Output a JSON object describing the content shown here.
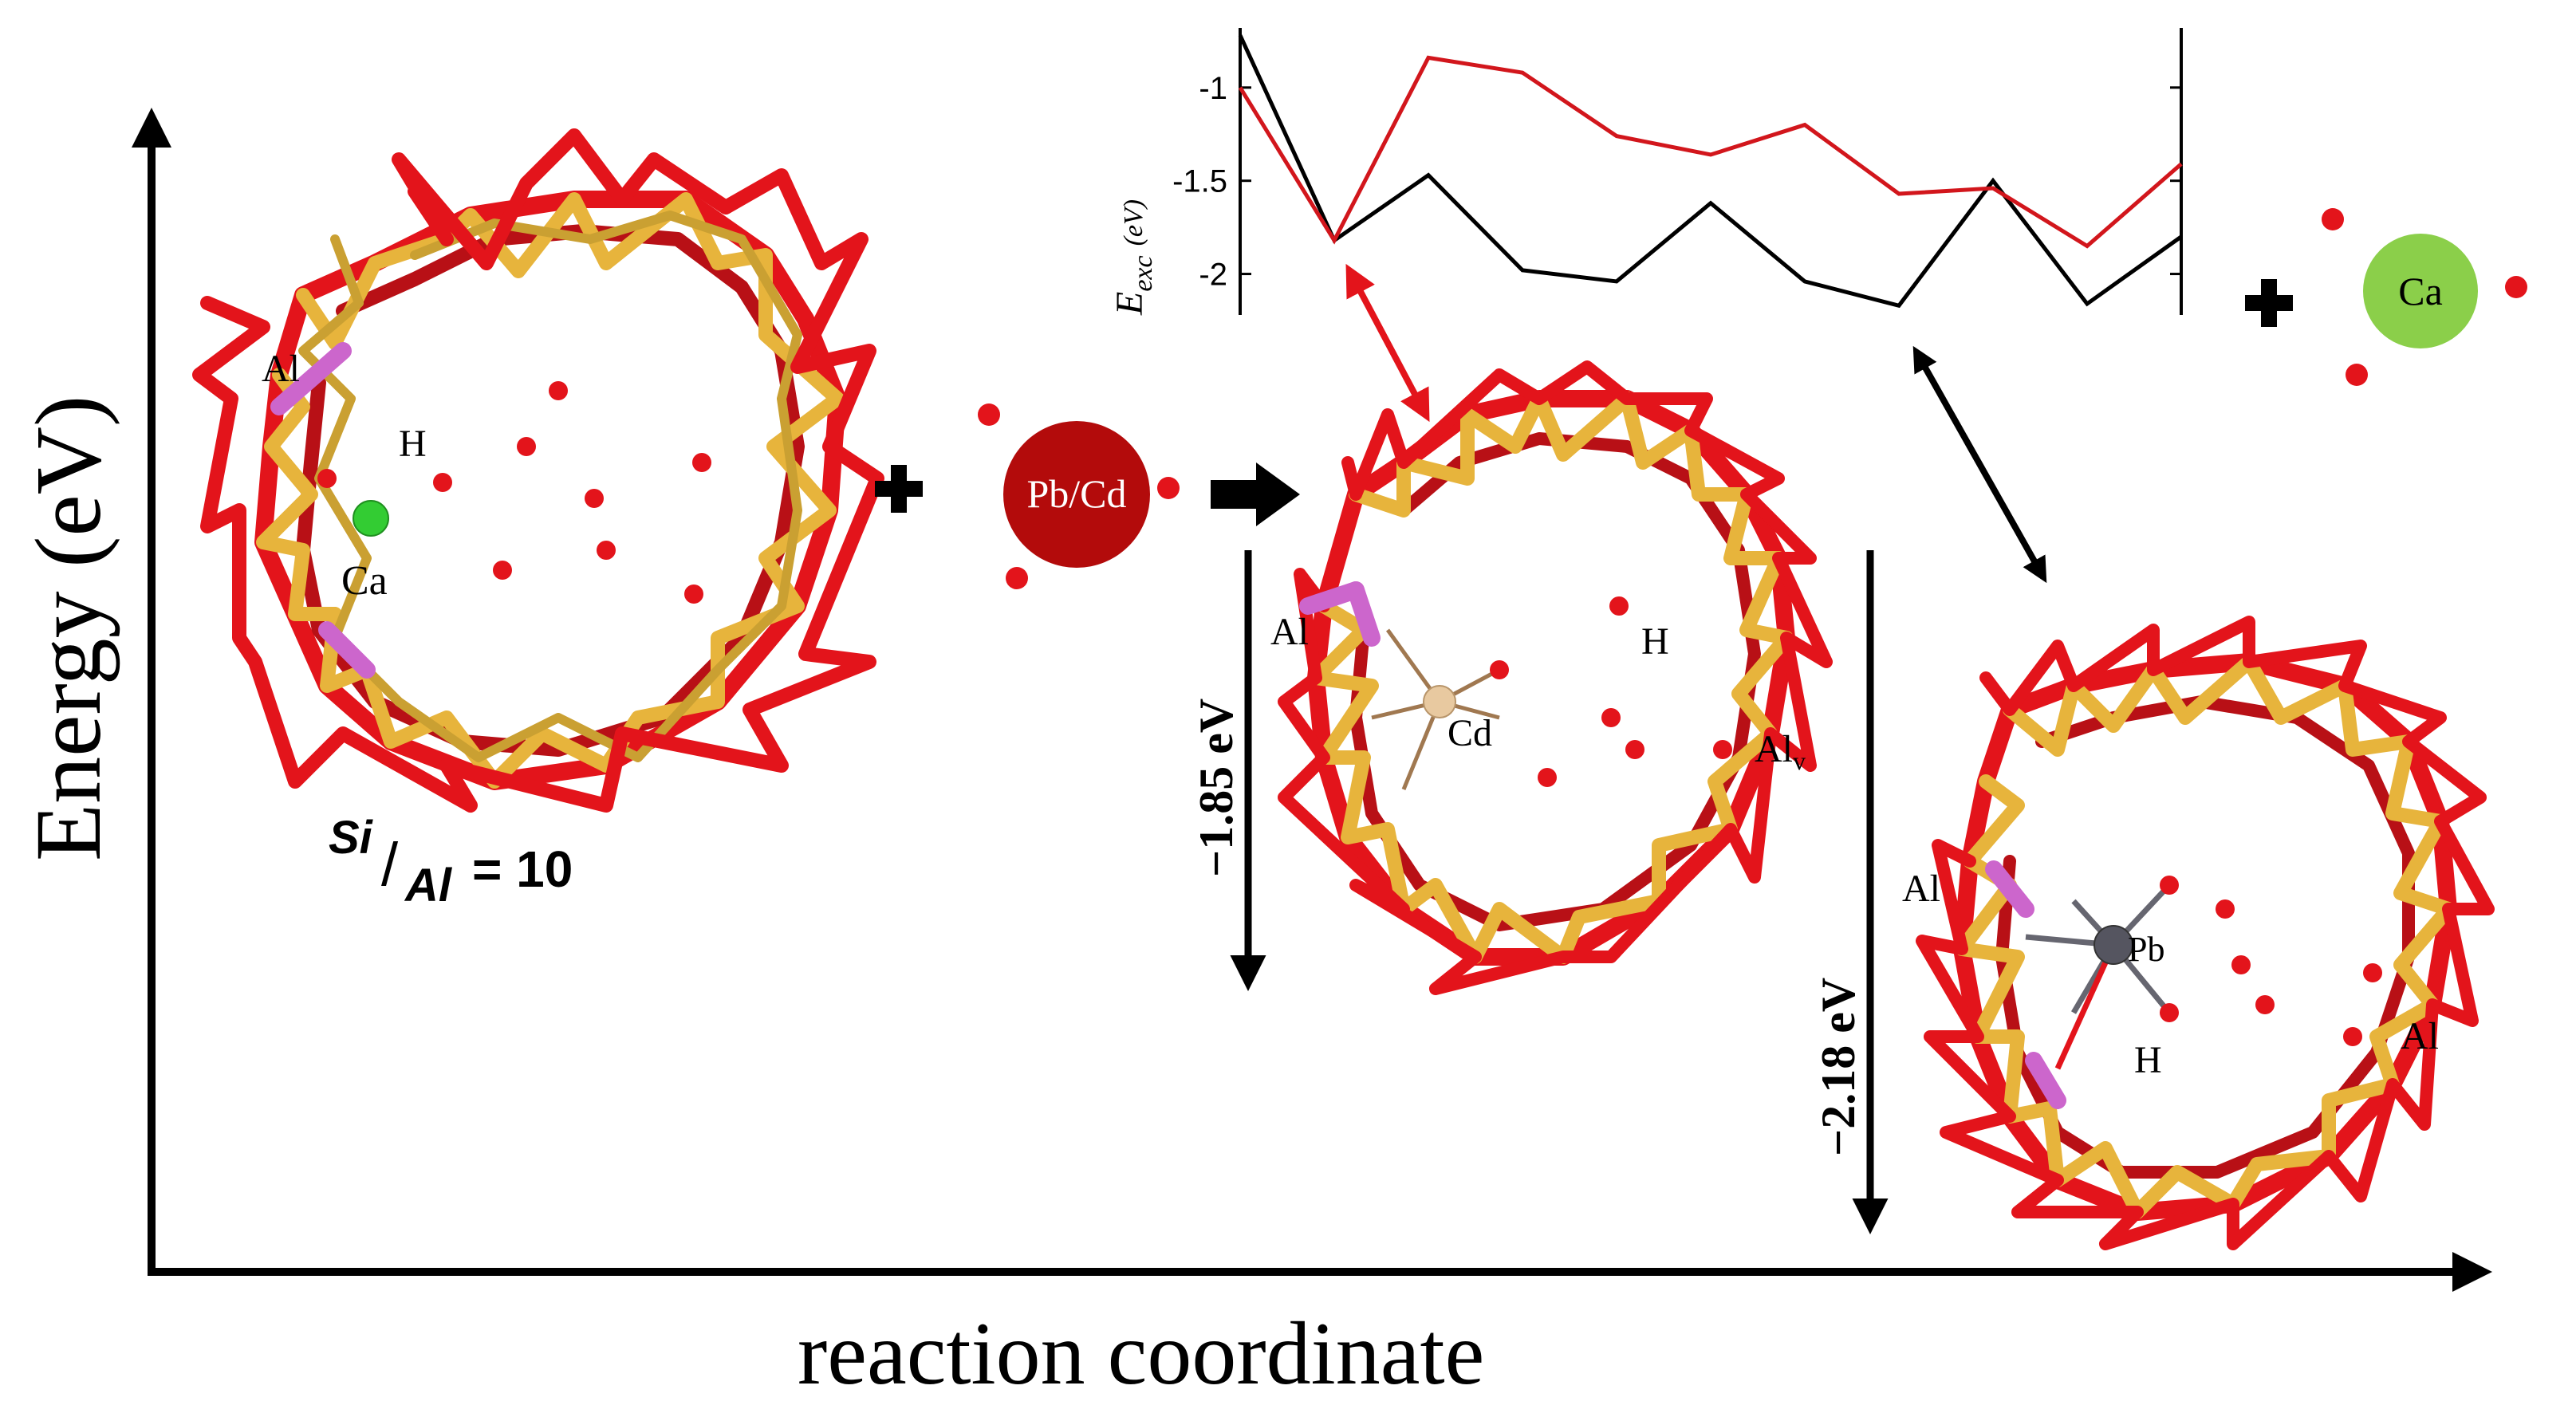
{
  "axes": {
    "y_label": "Energy (eV)",
    "x_label": "reaction coordinate"
  },
  "ratio": {
    "numerator": "Si",
    "denominator": "Al",
    "value": "= 10"
  },
  "reactant": {
    "labels": {
      "al": "Al",
      "h": "H",
      "ca": "Ca"
    }
  },
  "reagent_ball": "Pb/Cd",
  "product_ball": "Ca",
  "cd_complex": {
    "labels": {
      "al": "Al",
      "h": "H",
      "cd": "Cd",
      "al_v": "Al",
      "al_v_sub": "v"
    },
    "energy": "−1.85 eV"
  },
  "pb_complex": {
    "labels": {
      "al_left": "Al",
      "pb": "Pb",
      "h": "H",
      "al_right": "Al"
    },
    "energy": "−2.18 eV"
  },
  "colors": {
    "oxygen": "#e3141b",
    "silicon": "#e7b43c",
    "aluminum": "#cc66cc",
    "calcium": "#33cc33",
    "pb_cd_ball": "#b30b0b",
    "ca_ball": "#8bcf4a",
    "cd_atom": "#e8c9a0",
    "pb_atom": "#555560",
    "series_black": "#000000",
    "series_red": "#d2161c"
  },
  "chart_data": {
    "type": "line",
    "ylabel": "E_exc (eV)",
    "ylabel_main": "E",
    "ylabel_sub": "exc",
    "ylabel_unit": "(eV)",
    "ylim": [
      -2.22,
      -0.68
    ],
    "xlim": [
      0,
      10
    ],
    "yticks": [
      "-1",
      "-1.5",
      "-2"
    ],
    "ytick_values": [
      -1,
      -1.5,
      -2
    ],
    "series": [
      {
        "color": "#000000",
        "x": [
          0,
          1,
          2,
          3,
          4,
          5,
          6,
          7,
          8,
          9,
          10
        ],
        "values": [
          -0.72,
          -1.82,
          -1.47,
          -1.98,
          -2.04,
          -1.62,
          -2.04,
          -2.17,
          -1.5,
          -2.16,
          -1.8
        ]
      },
      {
        "color": "#d2161c",
        "x": [
          0,
          1,
          2,
          3,
          4,
          5,
          6,
          7,
          8,
          9,
          10
        ],
        "values": [
          -1.0,
          -1.82,
          -0.84,
          -0.92,
          -1.26,
          -1.36,
          -1.2,
          -1.57,
          -1.54,
          -1.85,
          -1.41
        ]
      }
    ]
  }
}
